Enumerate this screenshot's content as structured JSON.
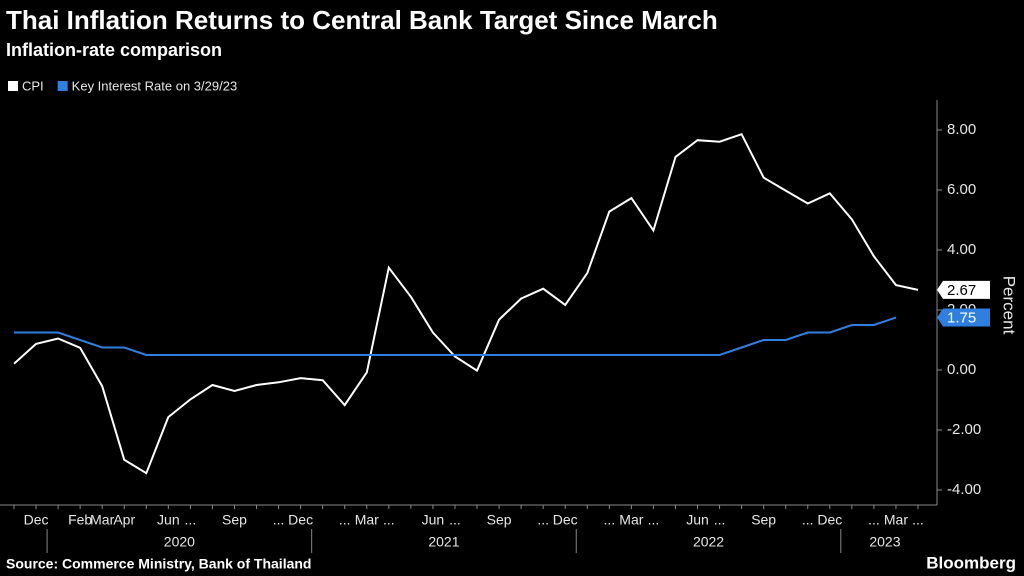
{
  "chart_data": {
    "type": "line",
    "title": "Thai Inflation Returns to Central Bank Target Since March",
    "subtitle": "Inflation-rate comparison",
    "y_label": "Percent",
    "source": "Source: Commerce Ministry, Bank of Thailand",
    "brand": "Bloomberg",
    "categories": [
      null,
      "Dec",
      null,
      "Feb",
      "Mar",
      "Apr",
      null,
      "Jun",
      "...",
      null,
      "Sep",
      null,
      "...",
      "Dec",
      null,
      "...",
      "Mar",
      "...",
      null,
      "Jun",
      "...",
      null,
      "Sep",
      null,
      "...",
      "Dec",
      null,
      "...",
      "Mar",
      "...",
      null,
      "Jun",
      "...",
      null,
      "Sep",
      null,
      "...",
      "Dec",
      null,
      "...",
      "Mar",
      "..."
    ],
    "years": [
      {
        "label": "2020",
        "from": 2,
        "to": 13
      },
      {
        "label": "2021",
        "from": 14,
        "to": 25
      },
      {
        "label": "2022",
        "from": 26,
        "to": 37
      },
      {
        "label": "2023",
        "from": 38,
        "to": 41
      }
    ],
    "series": [
      {
        "name": "CPI",
        "color": "#ffffff",
        "values": [
          0.21,
          0.87,
          1.05,
          0.74,
          -0.54,
          -2.99,
          -3.44,
          -1.57,
          -0.98,
          -0.5,
          -0.7,
          -0.5,
          -0.41,
          -0.27,
          -0.34,
          -1.17,
          -0.08,
          3.41,
          2.44,
          1.25,
          0.45,
          -0.02,
          1.68,
          2.38,
          2.71,
          2.17,
          3.23,
          5.28,
          5.73,
          4.65,
          7.1,
          7.66,
          7.61,
          7.86,
          6.41,
          5.98,
          5.55,
          5.89,
          5.02,
          3.79,
          2.83,
          2.67
        ]
      },
      {
        "name": "Key Interest Rate on 3/29/23",
        "color": "#2f7fe0",
        "values": [
          1.25,
          1.25,
          1.25,
          1.0,
          0.75,
          0.75,
          0.5,
          0.5,
          0.5,
          0.5,
          0.5,
          0.5,
          0.5,
          0.5,
          0.5,
          0.5,
          0.5,
          0.5,
          0.5,
          0.5,
          0.5,
          0.5,
          0.5,
          0.5,
          0.5,
          0.5,
          0.5,
          0.5,
          0.5,
          0.5,
          0.5,
          0.5,
          0.5,
          0.75,
          1.0,
          1.0,
          1.25,
          1.25,
          1.5,
          1.5,
          1.75,
          null
        ]
      }
    ],
    "ylim": [
      -4.5,
      9
    ],
    "yticks": [
      {
        "value": -4,
        "label": "-4.00"
      },
      {
        "value": -2,
        "label": "-2.00"
      },
      {
        "value": 0,
        "label": "0.00"
      },
      {
        "value": 2,
        "label": "2.00"
      },
      {
        "value": 4,
        "label": "4.00"
      },
      {
        "value": 6,
        "label": "6.00"
      },
      {
        "value": 8,
        "label": "8.00"
      }
    ],
    "grid": false
  }
}
